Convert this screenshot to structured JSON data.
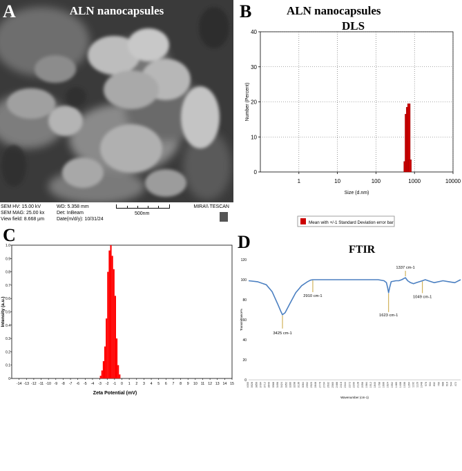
{
  "panels": {
    "A": {
      "letter": "A",
      "title": "ALN nanocapsules",
      "info": {
        "col1": [
          "SEM HV: 15.00 kV",
          "SEM MAG: 25.00 kx",
          "View field: 8.668 µm"
        ],
        "col2": [
          "WD: 5.358 mm",
          "Det: InBeam",
          "Date(m/d/y): 10/31/24"
        ],
        "scale_label": "500nm",
        "brand": "MIRA\\\\ TESCAN"
      }
    },
    "B": {
      "letter": "B",
      "title_line1": "ALN nanocapsules",
      "title_line2": "DLS"
    },
    "C": {
      "letter": "C"
    },
    "D": {
      "letter": "D",
      "title": "FTIR"
    }
  },
  "chart_data": [
    {
      "id": "dls",
      "type": "bar",
      "xlabel": "Size (d.nm)",
      "ylabel": "Number (Percent)",
      "x_scale": "log",
      "xlim": [
        0.1,
        10000
      ],
      "ylim": [
        0,
        40
      ],
      "x_ticks": [
        "1",
        "10",
        "100",
        "1000",
        "10000"
      ],
      "y_ticks": [
        "0",
        "10",
        "20",
        "30",
        "40"
      ],
      "grid": true,
      "bins": [
        {
          "x": 570,
          "value": 3
        },
        {
          "x": 615,
          "value": 16.5
        },
        {
          "x": 660,
          "value": 18.5
        },
        {
          "x": 715,
          "value": 19.5
        },
        {
          "x": 770,
          "value": 3.5
        }
      ],
      "bar_color": "#cc0000",
      "legend": "Mean with +/-1 Standard Deviation error bar"
    },
    {
      "id": "zeta",
      "type": "bar",
      "xlabel": "Zeta Potential (mV)",
      "ylabel": "Intensity (a.u.)",
      "xlim": [
        -15,
        15
      ],
      "ylim": [
        0,
        1.0
      ],
      "x_ticks": [
        "-14",
        "-13",
        "-12",
        "-11",
        "-10",
        "-9",
        "-8",
        "-7",
        "-6",
        "-5",
        "-4",
        "-3",
        "-2",
        "-1",
        "0",
        "1",
        "2",
        "3",
        "4",
        "5",
        "6",
        "7",
        "8",
        "9",
        "10",
        "11",
        "12",
        "13",
        "14",
        "15"
      ],
      "y_ticks": [
        "0",
        "0.1",
        "0.2",
        "0.3",
        "0.4",
        "0.5",
        "0.6",
        "0.7",
        "0.8",
        "0.9",
        "1.0"
      ],
      "bins": [
        {
          "x": -2.9,
          "value": 0.02
        },
        {
          "x": -2.7,
          "value": 0.06
        },
        {
          "x": -2.5,
          "value": 0.13
        },
        {
          "x": -2.3,
          "value": 0.24
        },
        {
          "x": -2.1,
          "value": 0.45
        },
        {
          "x": -1.9,
          "value": 0.8
        },
        {
          "x": -1.7,
          "value": 0.96
        },
        {
          "x": -1.5,
          "value": 1.0
        },
        {
          "x": -1.3,
          "value": 0.92
        },
        {
          "x": -1.1,
          "value": 0.82
        },
        {
          "x": -0.9,
          "value": 0.62
        },
        {
          "x": -0.7,
          "value": 0.3
        },
        {
          "x": -0.5,
          "value": 0.1
        },
        {
          "x": -0.3,
          "value": 0.03
        }
      ],
      "bar_color": "#ff0000"
    },
    {
      "id": "ftir",
      "type": "line",
      "xlabel": "Wavenumber (cm-1)",
      "ylabel": "Transmittance%",
      "xlim": [
        4000,
        400
      ],
      "ylim": [
        0,
        120
      ],
      "y_ticks": [
        "0",
        "20",
        "40",
        "60",
        "80",
        "100",
        "120"
      ],
      "x_ticks": [
        "4000",
        "3928",
        "3856",
        "3784",
        "3712",
        "3640",
        "3568",
        "3496",
        "3424",
        "3352",
        "3280",
        "3208",
        "3136",
        "3064",
        "2992",
        "2920",
        "2848",
        "2776",
        "2704",
        "2632",
        "2560",
        "2488",
        "2416",
        "2344",
        "2272",
        "2200",
        "2128",
        "2056",
        "1984",
        "1912",
        "1840",
        "1768",
        "1696",
        "1624",
        "1552",
        "1480",
        "1408",
        "1336",
        "1264",
        "1192",
        "1120",
        "1048",
        "976",
        "904",
        "832",
        "760",
        "688",
        "616",
        "544",
        "472"
      ],
      "x": [
        4000,
        3850,
        3700,
        3600,
        3500,
        3450,
        3425,
        3380,
        3300,
        3200,
        3100,
        3000,
        2950,
        2910,
        2850,
        2700,
        2400,
        2100,
        1800,
        1700,
        1660,
        1640,
        1623,
        1605,
        1580,
        1500,
        1450,
        1400,
        1337,
        1300,
        1250,
        1200,
        1150,
        1100,
        1049,
        1000,
        950,
        850,
        700,
        600,
        500,
        400
      ],
      "y": [
        99,
        98,
        95,
        88,
        75,
        68,
        65,
        67,
        76,
        87,
        94,
        98,
        99.5,
        100,
        100,
        100,
        100,
        100,
        100,
        99,
        97,
        92,
        87,
        92,
        98,
        99,
        99,
        100,
        102,
        99,
        97,
        96,
        97,
        98,
        99,
        100,
        99,
        97,
        99,
        98,
        97,
        100
      ],
      "annotations": [
        {
          "x": 3425,
          "y": 65,
          "label": "3425 cm-1"
        },
        {
          "x": 2910,
          "y": 100,
          "label": "2910 cm-1"
        },
        {
          "x": 1623,
          "y": 87,
          "label": "1623 cm-1"
        },
        {
          "x": 1337,
          "y": 102,
          "label": "1337 cm-1"
        },
        {
          "x": 1049,
          "y": 99,
          "label": "1049 cm-1"
        }
      ],
      "line_color": "#4a7fc1"
    }
  ]
}
